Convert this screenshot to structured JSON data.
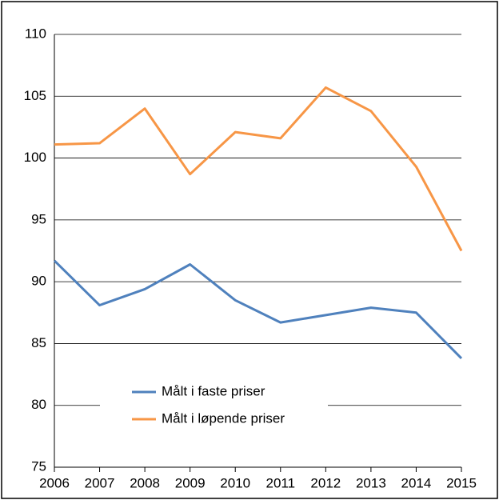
{
  "chart_data": {
    "type": "line",
    "x": [
      2006,
      2007,
      2008,
      2009,
      2010,
      2011,
      2012,
      2013,
      2014,
      2015
    ],
    "xlim": [
      2006,
      2015
    ],
    "xticks": [
      2006,
      2007,
      2008,
      2009,
      2010,
      2011,
      2012,
      2013,
      2014,
      2015
    ],
    "ylim": [
      75,
      110
    ],
    "yticks": [
      75,
      80,
      85,
      90,
      95,
      100,
      105,
      110
    ],
    "grid": true,
    "legend": "center",
    "series": [
      {
        "name": "Målt i faste priser",
        "color": "#4f81bd",
        "values": [
          91.7,
          88.1,
          89.4,
          91.4,
          88.5,
          86.7,
          87.3,
          87.9,
          87.5,
          83.8
        ]
      },
      {
        "name": "Målt i løpende priser",
        "color": "#f79646",
        "values": [
          101.1,
          101.2,
          104.0,
          98.7,
          102.1,
          101.6,
          105.7,
          103.8,
          99.3,
          92.5
        ]
      }
    ]
  }
}
